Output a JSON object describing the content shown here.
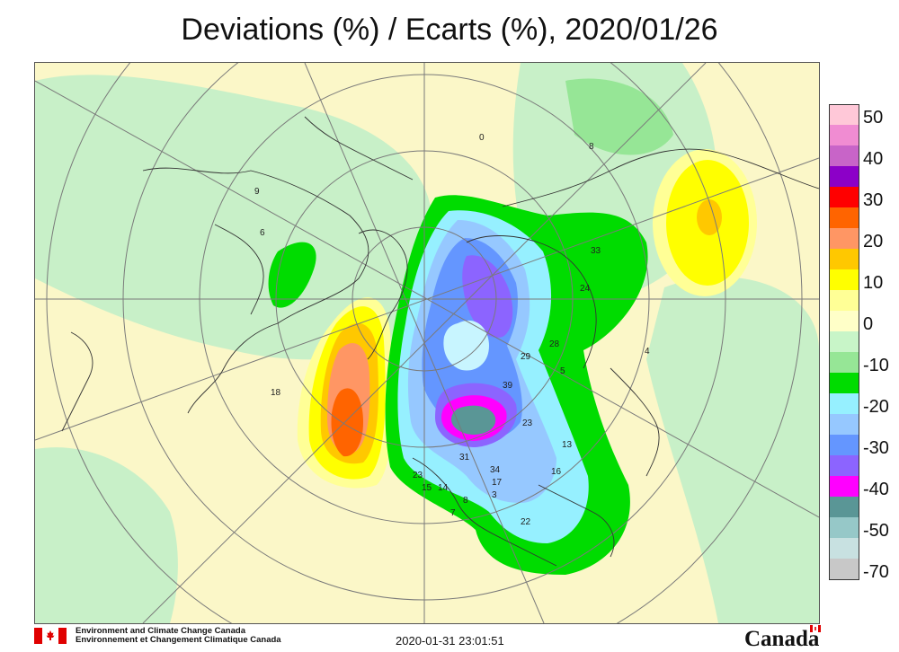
{
  "title": "Deviations (%) / Ecarts (%), 2020/01/26",
  "legend": {
    "labels": [
      "50",
      "40",
      "30",
      "20",
      "10",
      "0",
      "-10",
      "-20",
      "-30",
      "-40",
      "-50",
      "-70"
    ],
    "colors": [
      "#ffc8d8",
      "#f08cd2",
      "#c864c8",
      "#8c00c8",
      "#ff0000",
      "#ff6400",
      "#ff9664",
      "#ffc800",
      "#ffff00",
      "#ffff96",
      "#ffffc8",
      "#c8f5c8",
      "#96e696",
      "#00dc00",
      "#96f0ff",
      "#96c8ff",
      "#6496ff",
      "#8c64ff",
      "#ff00ff",
      "#5a9696",
      "#96c8c8",
      "#c8e1e1",
      "#c8c8c8"
    ]
  },
  "map_labels": [
    "0",
    "8",
    "9",
    "6",
    "33",
    "24",
    "28",
    "29",
    "39",
    "4",
    "5",
    "23",
    "13",
    "16",
    "34",
    "17",
    "31",
    "3",
    "8",
    "7",
    "15",
    "14",
    "23",
    "22",
    "18"
  ],
  "footer": {
    "dept_en": "Environment and Climate Change Canada",
    "dept_fr": "Environnement et Changement Climatique Canada",
    "timestamp": "2020-01-31 23:01:51",
    "wordmark": "Canada"
  }
}
